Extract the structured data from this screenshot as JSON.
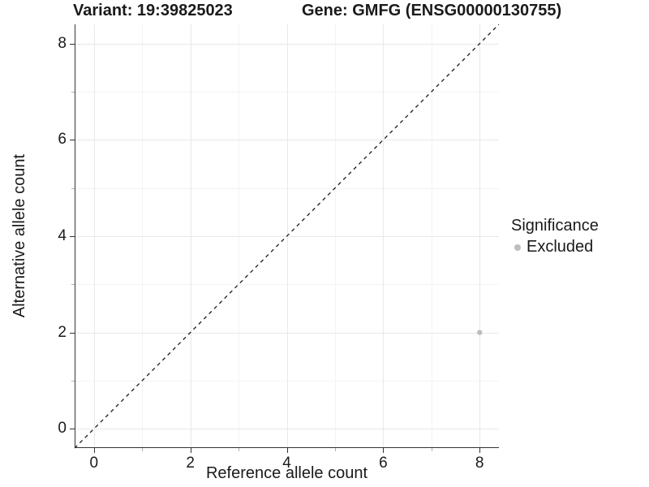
{
  "chart_data": {
    "type": "scatter",
    "titles": {
      "variant": "Variant: 19:39825023",
      "gene": "Gene: GMFG (ENSG00000130755)"
    },
    "xlabel": "Reference allele count",
    "ylabel": "Alternative allele count",
    "xlim": [
      -0.4,
      8.4
    ],
    "ylim": [
      -0.4,
      8.4
    ],
    "major_breaks": [
      0,
      2,
      4,
      6,
      8
    ],
    "minor_breaks": [
      1,
      3,
      5,
      7
    ],
    "grid": {
      "major_color": "#e8e8e8",
      "minor_color": "#f3f3f3",
      "background": "#ffffff"
    },
    "identity_line": {
      "slope": 1,
      "intercept": 0,
      "style": "dashed",
      "color": "#1a1a1a"
    },
    "points": [
      {
        "x": 8,
        "y": 2,
        "significance": "Excluded",
        "color": "#bdbdbd",
        "radius": 3.2
      }
    ],
    "legend": {
      "title": "Significance",
      "position": "right",
      "items": [
        {
          "label": "Excluded",
          "color": "#bdbdbd"
        }
      ]
    }
  }
}
